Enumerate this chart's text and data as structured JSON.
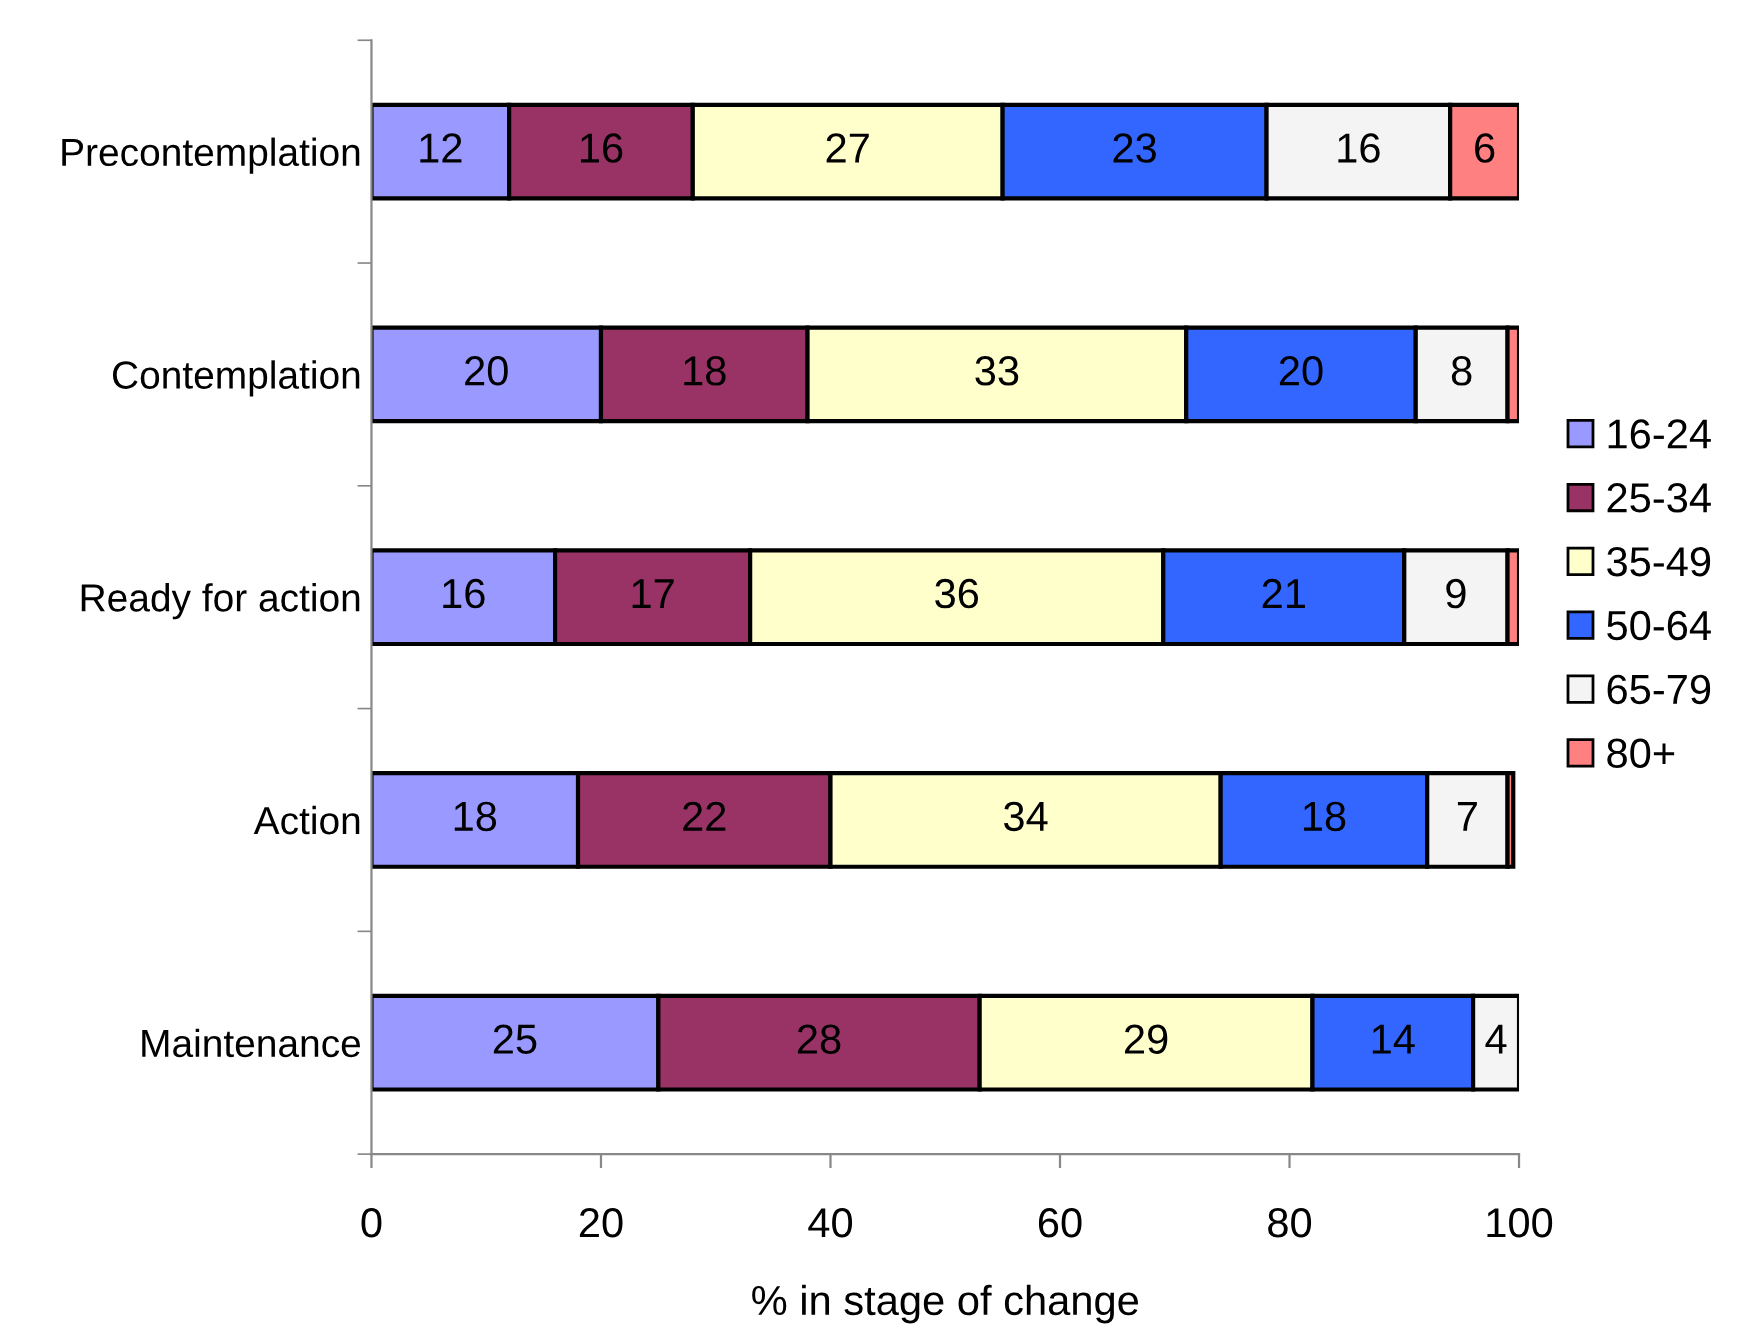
{
  "chart_data": {
    "type": "bar",
    "orientation": "horizontal",
    "stacked": true,
    "categories": [
      "Precontemplation",
      "Contemplation",
      "Ready for action",
      "Action",
      "Maintenance"
    ],
    "xlabel": "% in stage of change",
    "xlim": [
      0,
      100
    ],
    "xticks": [
      0,
      20,
      40,
      60,
      80,
      100
    ],
    "series": [
      {
        "name": "16-24",
        "color": "#9999ff",
        "values": [
          12,
          20,
          16,
          18,
          25
        ],
        "value_labels": [
          "12",
          "20",
          "16",
          "18",
          "25"
        ]
      },
      {
        "name": "25-34",
        "color": "#993366",
        "values": [
          16,
          18,
          17,
          22,
          28
        ],
        "value_labels": [
          "16",
          "18",
          "17",
          "22",
          "28"
        ]
      },
      {
        "name": "35-49",
        "color": "#ffffcc",
        "values": [
          27,
          33,
          36,
          34,
          29
        ],
        "value_labels": [
          "27",
          "33",
          "36",
          "34",
          "29"
        ]
      },
      {
        "name": "50-64",
        "color": "#3366ff",
        "values": [
          23,
          20,
          21,
          18,
          14
        ],
        "value_labels": [
          "23",
          "20",
          "21",
          "18",
          "14"
        ]
      },
      {
        "name": "65-79",
        "color": "#f4f4f4",
        "values": [
          16,
          8,
          9,
          7,
          4
        ],
        "value_labels": [
          "16",
          "8",
          "9",
          "7",
          "4"
        ]
      },
      {
        "name": "80+",
        "color": "#ff8080",
        "values": [
          6,
          1,
          1,
          0.5,
          null
        ],
        "value_labels": [
          "6",
          null,
          null,
          null,
          null
        ]
      }
    ],
    "legend": "right",
    "grid": false
  }
}
